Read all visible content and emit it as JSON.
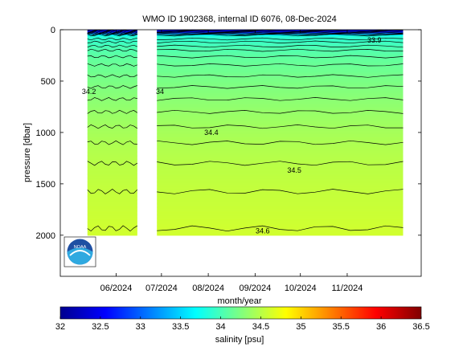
{
  "chart_data": {
    "type": "heatmap",
    "title": "WMO ID 1902368, internal ID 6076, 08-Dec-2024",
    "xlabel": "month/year",
    "ylabel": "pressure [dbar]",
    "x_ticks": [
      "06/2024",
      "07/2024",
      "08/2024",
      "09/2024",
      "10/2024",
      "11/2024"
    ],
    "y_ticks": [
      0,
      500,
      1000,
      1500,
      2000
    ],
    "ylim": [
      2400,
      0
    ],
    "y_reversed": true,
    "x_range": [
      "2024-04-25",
      "2024-12-20"
    ],
    "data_start": "2024-05-13",
    "data_end": "2024-12-08",
    "data_gap": [
      "2024-06-15",
      "2024-06-28"
    ],
    "max_pressure": 2000,
    "colorbar": {
      "label": "salinity [psu]",
      "min": 32,
      "max": 36.5,
      "ticks": [
        "32",
        "32.5",
        "33",
        "33.5",
        "34",
        "34.5",
        "35",
        "35.5",
        "36",
        "36.5"
      ]
    },
    "salinity_profile": [
      {
        "pressure": 0,
        "salinity": 32.2
      },
      {
        "pressure": 20,
        "salinity": 32.6
      },
      {
        "pressure": 60,
        "salinity": 33.85
      },
      {
        "pressure": 120,
        "salinity": 33.95
      },
      {
        "pressure": 200,
        "salinity": 34.05
      },
      {
        "pressure": 300,
        "salinity": 34.13
      },
      {
        "pressure": 450,
        "salinity": 34.2
      },
      {
        "pressure": 600,
        "salinity": 34.27
      },
      {
        "pressure": 800,
        "salinity": 34.35
      },
      {
        "pressure": 1000,
        "salinity": 34.42
      },
      {
        "pressure": 1200,
        "salinity": 34.48
      },
      {
        "pressure": 1500,
        "salinity": 34.54
      },
      {
        "pressure": 1800,
        "salinity": 34.58
      },
      {
        "pressure": 2000,
        "salinity": 34.61
      }
    ],
    "contour_labels": [
      {
        "text": "33.9",
        "date": "2024-11-19",
        "pressure": 100
      },
      {
        "text": "34.2",
        "date": "2024-05-14",
        "pressure": 600
      },
      {
        "text": "34",
        "date": "2024-06-30",
        "pressure": 600
      },
      {
        "text": "34.4",
        "date": "2024-08-03",
        "pressure": 1000
      },
      {
        "text": "34.5",
        "date": "2024-09-27",
        "pressure": 1370
      },
      {
        "text": "34.6",
        "date": "2024-09-06",
        "pressure": 1960
      }
    ],
    "logo": "NOAA"
  }
}
